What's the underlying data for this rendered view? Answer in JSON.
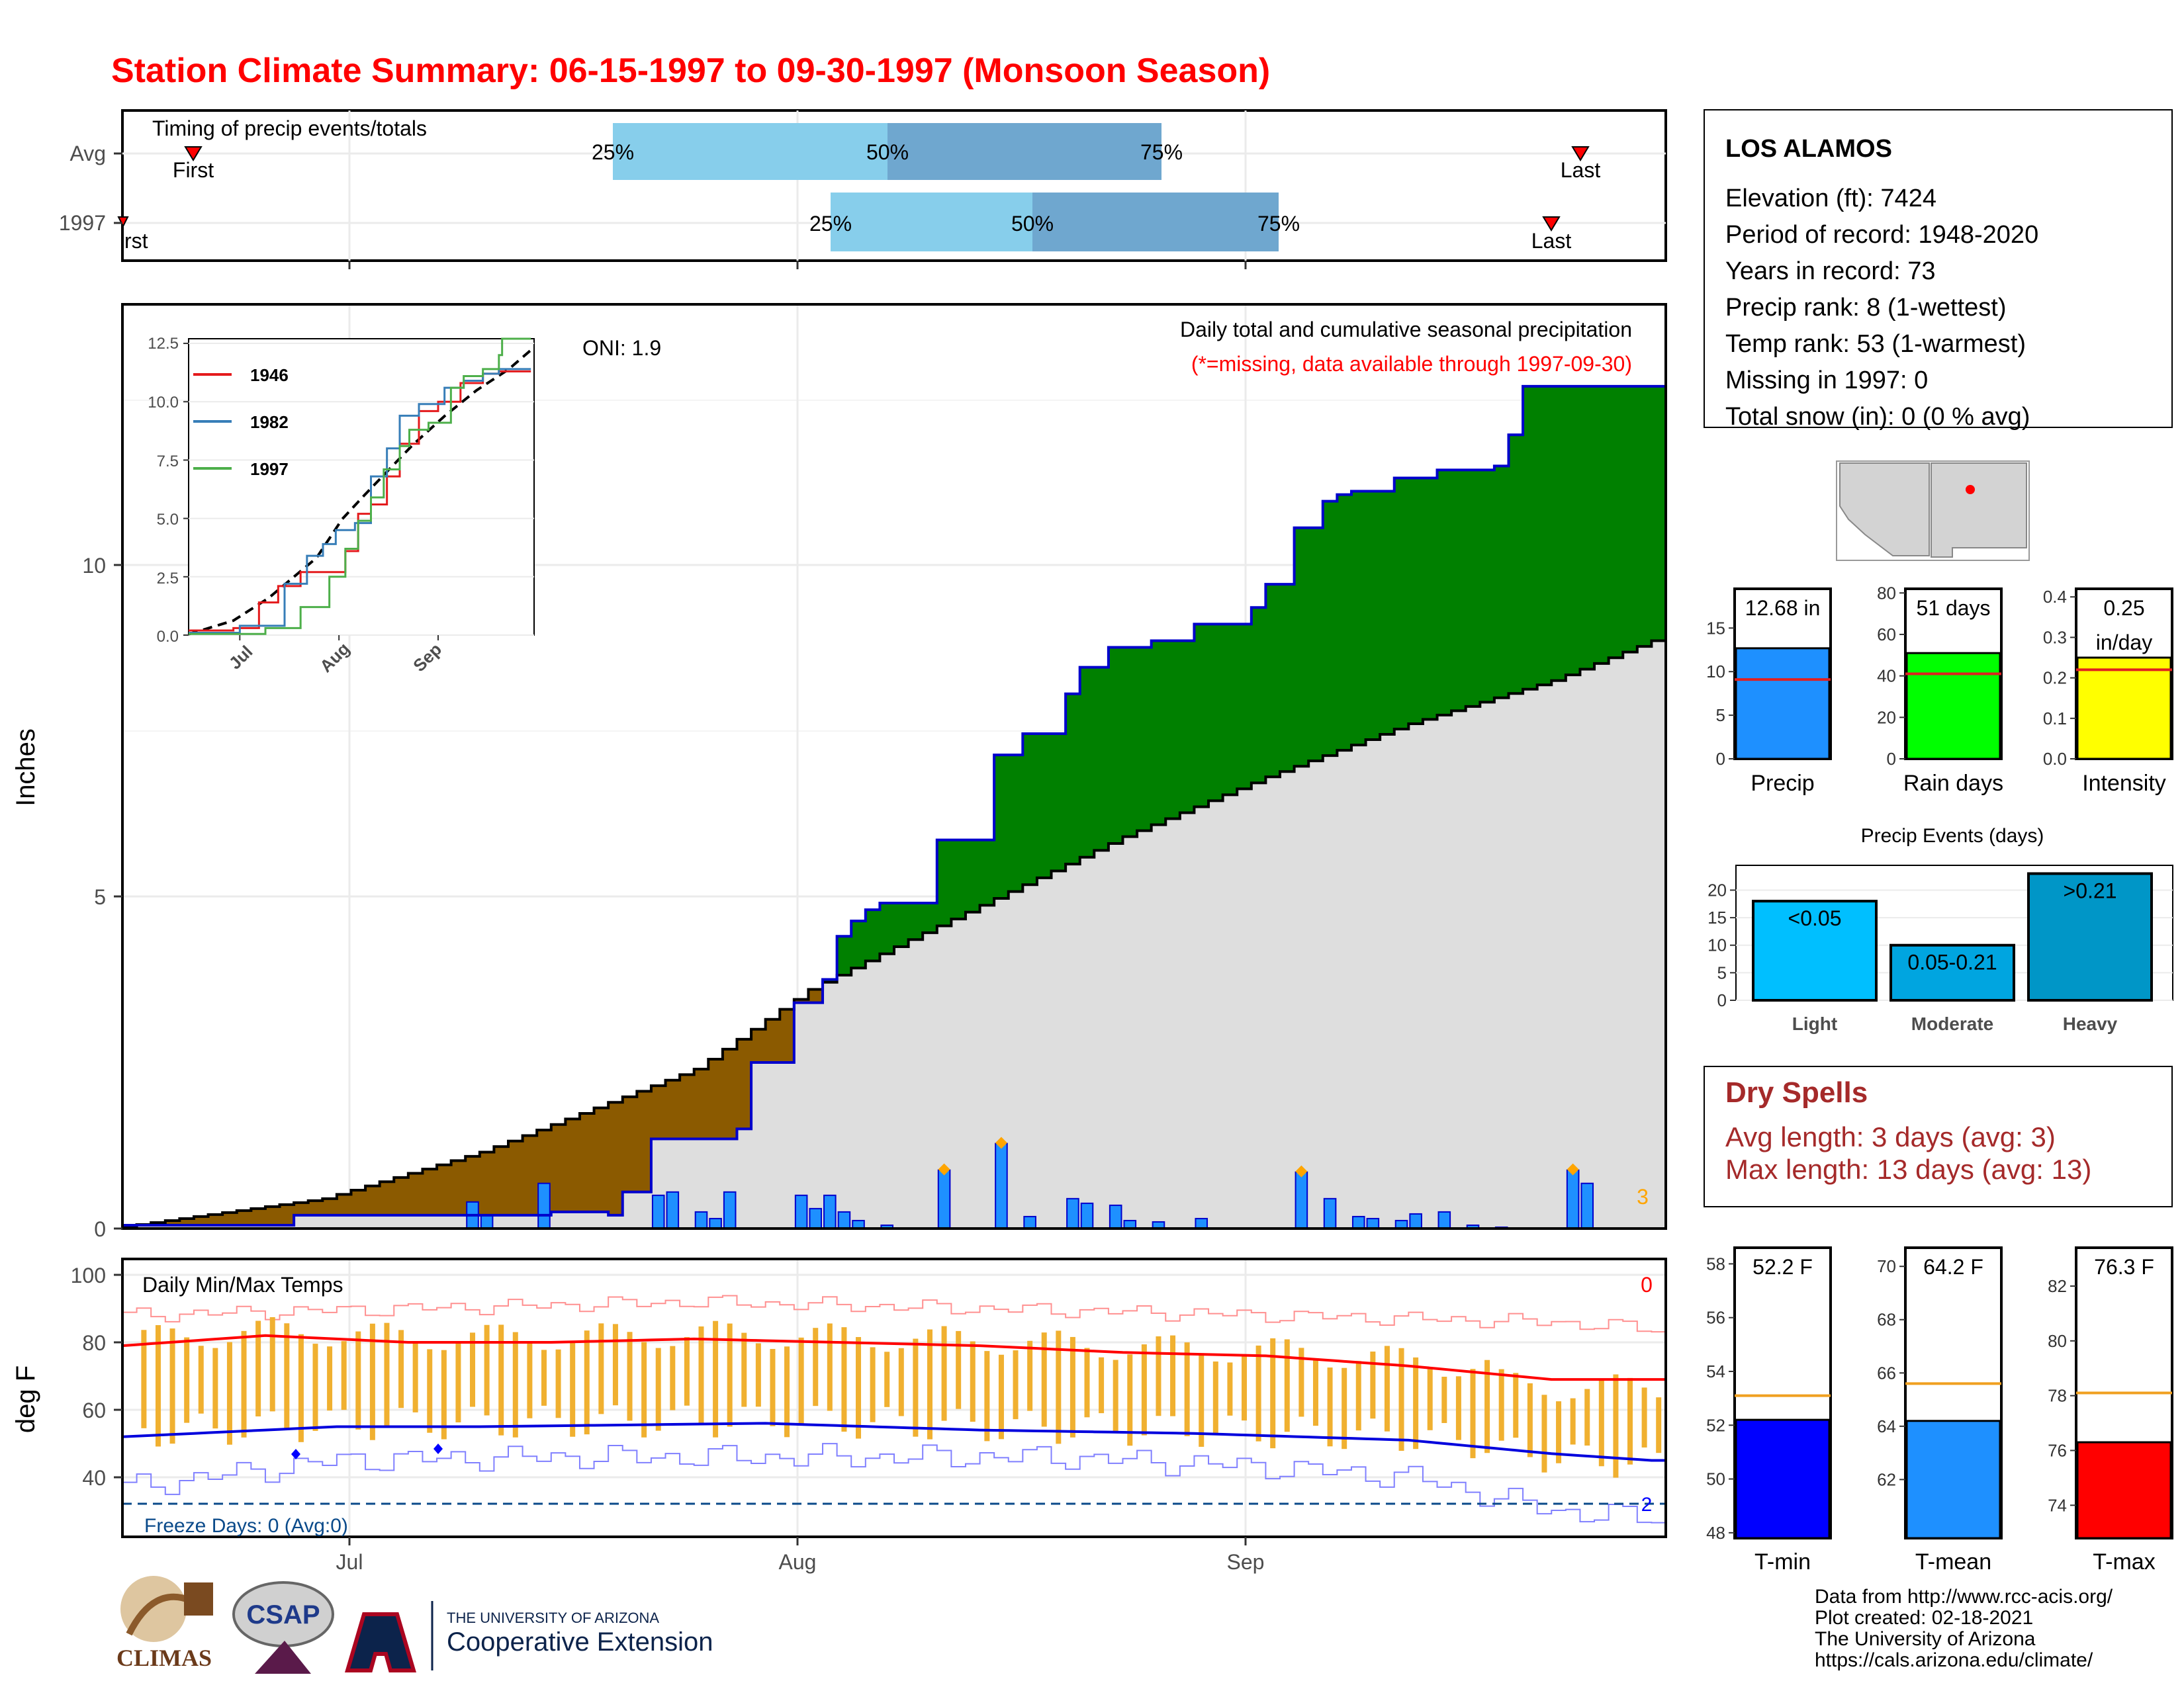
{
  "title": "Station Climate Summary: 06-15-1997 to 09-30-1997 (Monsoon Season)",
  "timing": {
    "label": "Timing of precip events/totals",
    "rows": [
      "Avg",
      "1997"
    ],
    "first_label": "First",
    "first_label_1997": "rst",
    "last_label": "Last",
    "pct_labels": [
      "25%",
      "50%",
      "75%"
    ]
  },
  "main_plot": {
    "ylabel": "Inches",
    "yticks": [
      "0",
      "5",
      "10"
    ],
    "oni": "ONI: 1.9",
    "header": "Daily total and cumulative seasonal precipitation",
    "subheader": "(*=missing, data available through 1997-09-30)",
    "corner_count": "3",
    "xticks": [
      "Jul",
      "Aug",
      "Sep"
    ]
  },
  "inset": {
    "yticks": [
      "0.0",
      "2.5",
      "5.0",
      "7.5",
      "10.0",
      "12.5"
    ],
    "xticks": [
      "Jul",
      "Aug",
      "Sep"
    ],
    "legend": [
      "1946",
      "1982",
      "1997"
    ],
    "colors": {
      "1946": "#e41a1c",
      "1982": "#377eb8",
      "1997": "#4daf4a"
    }
  },
  "temp_plot": {
    "ylabel": "deg F",
    "yticks": [
      "40",
      "60",
      "80",
      "100"
    ],
    "label": "Daily Min/Max Temps",
    "corner_count": "0",
    "freeze": "Freeze Days: 0 (Avg:0)",
    "freeze_count": "2"
  },
  "station": {
    "name": "LOS ALAMOS",
    "lines": [
      "Elevation (ft): 7424",
      "Period of record: 1948-2020",
      "Years in record: 73",
      "Precip rank: 8 (1-wettest)",
      "Temp rank: 53 (1-warmest)",
      "Missing in 1997: 0",
      "Total snow (in): 0 (0 % avg)"
    ]
  },
  "mini_bars": [
    {
      "label": "Precip",
      "value_text": "12.68 in",
      "value": 12.68,
      "avg": 9.1,
      "ymax": 19.5,
      "ticks": [
        "0",
        "5",
        "10",
        "15"
      ],
      "color": "#1e90ff"
    },
    {
      "label": "Rain days",
      "value_text": "51 days",
      "value": 51,
      "avg": 41,
      "ymax": 82,
      "ticks": [
        "0",
        "20",
        "40",
        "60",
        "80"
      ],
      "color": "#00ff00"
    },
    {
      "label": "Intensity",
      "value_text": "0.25 in/day",
      "value": 0.25,
      "avg": 0.22,
      "ymax": 0.42,
      "ticks": [
        "0.0",
        "0.1",
        "0.2",
        "0.3",
        "0.4"
      ],
      "color": "#ffff00"
    }
  ],
  "precip_events": {
    "title": "Precip Events (days)",
    "categories": [
      "Light",
      "Moderate",
      "Heavy"
    ],
    "bar_labels": [
      "<0.05",
      "0.05-0.21",
      ">0.21"
    ],
    "values": [
      18,
      10,
      23
    ],
    "ticks": [
      "0",
      "5",
      "10",
      "15",
      "20"
    ],
    "colors": [
      "#00bfff",
      "#00a5e0",
      "#0096c7"
    ]
  },
  "dry_spells": {
    "title": "Dry Spells",
    "lines": [
      "Avg length: 3 days (avg: 3)",
      "Max length: 13 days (avg: 13)"
    ]
  },
  "temp_bars": [
    {
      "label": "T-min",
      "value_text": "52.2 F",
      "value": 52.2,
      "avg": 53.1,
      "ymin": 47.8,
      "ymax": 58.6,
      "ticks": [
        "48",
        "50",
        "52",
        "54",
        "56",
        "58"
      ],
      "color": "#0000ff"
    },
    {
      "label": "T-mean",
      "value_text": "64.2 F",
      "value": 64.2,
      "avg": 65.6,
      "ymin": 59.8,
      "ymax": 70.7,
      "ticks": [
        "62",
        "64",
        "66",
        "68",
        "70"
      ],
      "color": "#1e90ff"
    },
    {
      "label": "T-max",
      "value_text": "76.3 F",
      "value": 76.3,
      "avg": 78.1,
      "ymin": 72.8,
      "ymax": 83.4,
      "ticks": [
        "74",
        "76",
        "78",
        "80",
        "82"
      ],
      "color": "#ff0000"
    }
  ],
  "footer": [
    "Data from http://www.rcc-acis.org/",
    "Plot created: 02-18-2021",
    "The University of Arizona",
    "https://cals.arizona.edu/climate/"
  ],
  "logos": {
    "climas": "CLIMAS",
    "csap": "CSAP",
    "ua_small": "THE UNIVERSITY OF ARIZONA",
    "ua_big": "Cooperative Extension"
  },
  "chart_data": {
    "type": "area",
    "title": "Daily total and cumulative seasonal precipitation",
    "ylabel": "Inches",
    "ylim": [
      0,
      13
    ],
    "x": "day of season (0 = 06-15-1997, 107 = 09-30-1997)",
    "daily_precip_days": [
      24,
      25,
      29,
      37,
      38,
      40,
      41,
      42,
      47,
      48,
      49,
      50,
      51,
      53,
      57,
      61,
      63,
      66,
      67,
      69,
      70,
      72,
      75,
      82,
      84,
      86,
      87,
      89,
      90,
      92,
      94,
      96,
      101,
      102
    ],
    "daily_precip_values": [
      0.4,
      0.2,
      0.68,
      0.5,
      0.55,
      0.25,
      0.15,
      0.55,
      0.5,
      0.3,
      0.5,
      0.25,
      0.12,
      0.05,
      0.88,
      1.28,
      0.18,
      0.45,
      0.38,
      0.35,
      0.12,
      0.1,
      0.15,
      0.85,
      0.45,
      0.18,
      0.15,
      0.12,
      0.22,
      0.25,
      0.05,
      0.02,
      0.88,
      0.68
    ],
    "cumulative_1997_steps": [
      [
        0,
        0.05
      ],
      [
        12,
        0.2
      ],
      [
        30,
        0.25
      ],
      [
        34,
        0.2
      ],
      [
        35,
        0.55
      ],
      [
        37,
        1.35
      ],
      [
        43,
        1.5
      ],
      [
        44,
        2.5
      ],
      [
        47,
        3.4
      ],
      [
        49,
        3.75
      ],
      [
        50,
        4.4
      ],
      [
        51,
        4.63
      ],
      [
        52,
        4.8
      ],
      [
        53,
        4.9
      ],
      [
        57,
        5.85
      ],
      [
        61,
        7.13
      ],
      [
        63,
        7.45
      ],
      [
        66,
        8.05
      ],
      [
        67,
        8.45
      ],
      [
        69,
        8.75
      ],
      [
        72,
        8.85
      ],
      [
        75,
        9.1
      ],
      [
        79,
        9.35
      ],
      [
        80,
        9.7
      ],
      [
        82,
        10.55
      ],
      [
        84,
        10.95
      ],
      [
        85,
        11.05
      ],
      [
        86,
        11.1
      ],
      [
        89,
        11.3
      ],
      [
        92,
        11.42
      ],
      [
        96,
        11.48
      ],
      [
        97,
        11.95
      ],
      [
        98,
        12.68
      ],
      [
        107,
        12.68
      ]
    ],
    "avg_cumulative_series": [
      [
        0,
        0.03
      ],
      [
        14,
        0.45
      ],
      [
        25,
        1.15
      ],
      [
        40,
        2.4
      ],
      [
        48,
        3.6
      ],
      [
        55,
        4.35
      ],
      [
        70,
        5.9
      ],
      [
        80,
        6.8
      ],
      [
        90,
        7.6
      ],
      [
        100,
        8.25
      ],
      [
        107,
        8.85
      ]
    ],
    "temperature": {
      "ylabel": "deg F",
      "ylim": [
        30,
        100
      ],
      "avg_max_series": [
        [
          0,
          79
        ],
        [
          10,
          82
        ],
        [
          20,
          80
        ],
        [
          30,
          80
        ],
        [
          40,
          81
        ],
        [
          50,
          80
        ],
        [
          60,
          79
        ],
        [
          70,
          77
        ],
        [
          80,
          76
        ],
        [
          90,
          73
        ],
        [
          100,
          69
        ],
        [
          107,
          69
        ]
      ],
      "avg_min_series": [
        [
          0,
          52
        ],
        [
          15,
          55
        ],
        [
          25,
          55
        ],
        [
          45,
          56
        ],
        [
          60,
          54
        ],
        [
          75,
          53
        ],
        [
          90,
          51
        ],
        [
          100,
          47
        ],
        [
          107,
          45
        ]
      ],
      "record_high_series": [
        [
          0,
          88
        ],
        [
          20,
          90
        ],
        [
          40,
          92
        ],
        [
          60,
          90
        ],
        [
          80,
          88
        ],
        [
          100,
          86
        ],
        [
          107,
          84
        ]
      ],
      "record_low_series": [
        [
          0,
          37
        ],
        [
          15,
          45
        ],
        [
          30,
          46
        ],
        [
          50,
          46
        ],
        [
          65,
          46
        ],
        [
          80,
          43
        ],
        [
          90,
          40
        ],
        [
          100,
          30
        ],
        [
          107,
          28
        ]
      ]
    }
  }
}
